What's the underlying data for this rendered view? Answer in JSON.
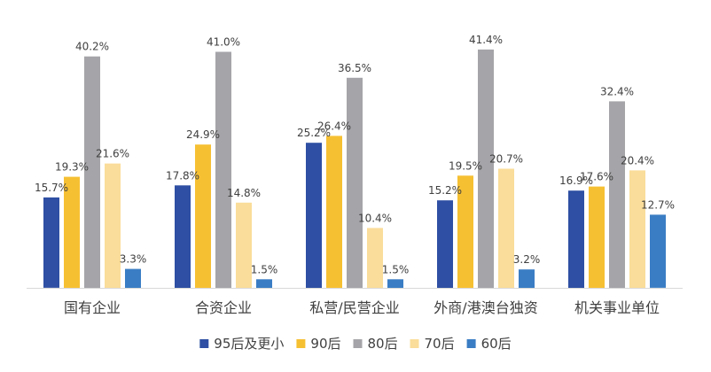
{
  "chart_data": {
    "type": "bar",
    "categories": [
      "国有企业",
      "合资企业",
      "私营/民营企业",
      "外商/港澳台独资",
      "机关事业单位"
    ],
    "series": [
      {
        "name": "95后及更小",
        "color": "#2E4FA3",
        "values": [
          15.7,
          17.8,
          25.2,
          15.2,
          16.9
        ],
        "labels": [
          "15.7%",
          "17.8%",
          "25.2%",
          "15.2%",
          "16.9%"
        ]
      },
      {
        "name": "90后",
        "color": "#F6C033",
        "values": [
          19.3,
          24.9,
          26.4,
          19.5,
          17.6
        ],
        "labels": [
          "19.3%",
          "24.9%",
          "26.4%",
          "19.5%",
          "17.6%"
        ]
      },
      {
        "name": "80后",
        "color": "#A5A4A8",
        "values": [
          40.2,
          41.0,
          36.5,
          41.4,
          32.4
        ],
        "labels": [
          "40.2%",
          "41.0%",
          "36.5%",
          "41.4%",
          "32.4%"
        ]
      },
      {
        "name": "70后",
        "color": "#FADD9A",
        "values": [
          21.6,
          14.8,
          10.4,
          20.7,
          20.4
        ],
        "labels": [
          "21.6%",
          "14.8%",
          "10.4%",
          "20.7%",
          "20.4%"
        ]
      },
      {
        "name": "60后",
        "color": "#3A7DC4",
        "values": [
          3.3,
          1.5,
          1.5,
          3.2,
          12.7
        ],
        "labels": [
          "3.3%",
          "1.5%",
          "1.5%",
          "3.2%",
          "12.7%"
        ]
      }
    ],
    "ylim": [
      0,
      50
    ],
    "grid": false,
    "legend": "bottom",
    "axis_color": "#D9D9D9"
  }
}
